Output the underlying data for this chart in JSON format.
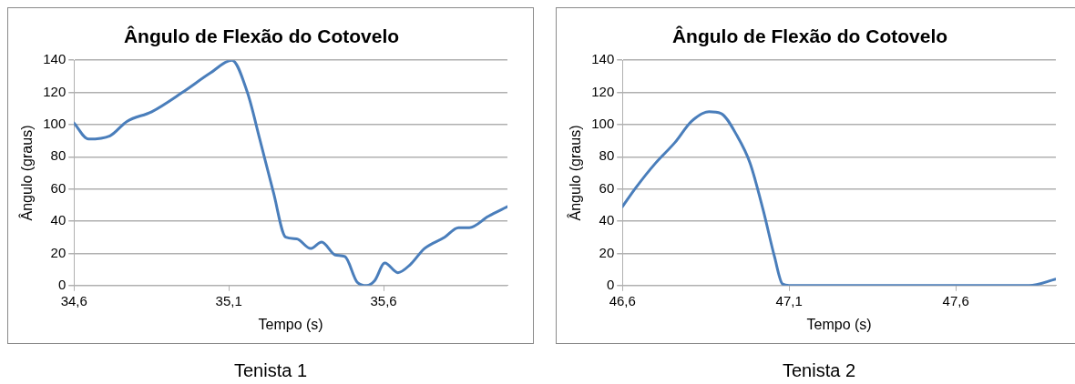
{
  "chart_data": [
    {
      "type": "line",
      "title": "Ângulo de Flexão do Cotovelo",
      "xlabel": "Tempo (s)",
      "ylabel": "Ângulo (graus)",
      "annotations": [
        "Tenista 1"
      ],
      "xlim": [
        34.6,
        36.0
      ],
      "xticks": [
        {
          "value": 34.6,
          "label": "34,6"
        },
        {
          "value": 35.1,
          "label": "35,1"
        },
        {
          "value": 35.6,
          "label": "35,6"
        }
      ],
      "ylim": [
        0,
        140
      ],
      "yticks": [
        0,
        20,
        40,
        60,
        80,
        100,
        120,
        140
      ],
      "grid": "y",
      "legend": false,
      "marker": "none",
      "line_style": "solid",
      "series": [
        {
          "color": "#4a7ebb",
          "x": [
            34.6,
            34.647,
            34.716,
            34.771,
            34.851,
            34.95,
            35.04,
            35.11,
            35.16,
            35.2,
            35.244,
            35.284,
            35.319,
            35.364,
            35.4,
            35.444,
            35.475,
            35.515,
            35.545,
            35.571,
            35.604,
            35.646,
            35.686,
            35.732,
            35.797,
            35.842,
            35.877,
            35.938,
            36.0
          ],
          "values": [
            101,
            91,
            93,
            102,
            108,
            120,
            132,
            140,
            120,
            91,
            58,
            30,
            29,
            23,
            27,
            19,
            18,
            2,
            0,
            3,
            14,
            8,
            13,
            23,
            30,
            36,
            36,
            43,
            49
          ]
        }
      ]
    },
    {
      "type": "line",
      "title": "Ângulo de Flexão do Cotovelo",
      "xlabel": "Tempo (s)",
      "ylabel": "Ângulo (graus)",
      "annotations": [
        "Tenista 2"
      ],
      "xlim": [
        46.6,
        47.9
      ],
      "xticks": [
        {
          "value": 46.6,
          "label": "46,6"
        },
        {
          "value": 47.1,
          "label": "47,1"
        },
        {
          "value": 47.6,
          "label": "47,6"
        }
      ],
      "ylim": [
        0,
        140
      ],
      "yticks": [
        0,
        20,
        40,
        60,
        80,
        100,
        120,
        140
      ],
      "grid": "y",
      "legend": false,
      "marker": "none",
      "line_style": "solid",
      "series": [
        {
          "color": "#4a7ebb",
          "x": [
            46.6,
            46.641,
            46.699,
            46.758,
            46.807,
            46.86,
            46.895,
            46.944,
            46.983,
            47.022,
            47.056,
            47.08,
            47.1,
            47.5,
            47.82,
            47.9
          ],
          "values": [
            49,
            61,
            76,
            89,
            102,
            108,
            107,
            93,
            76,
            47,
            18,
            1,
            0,
            0,
            0,
            4
          ]
        }
      ]
    }
  ]
}
